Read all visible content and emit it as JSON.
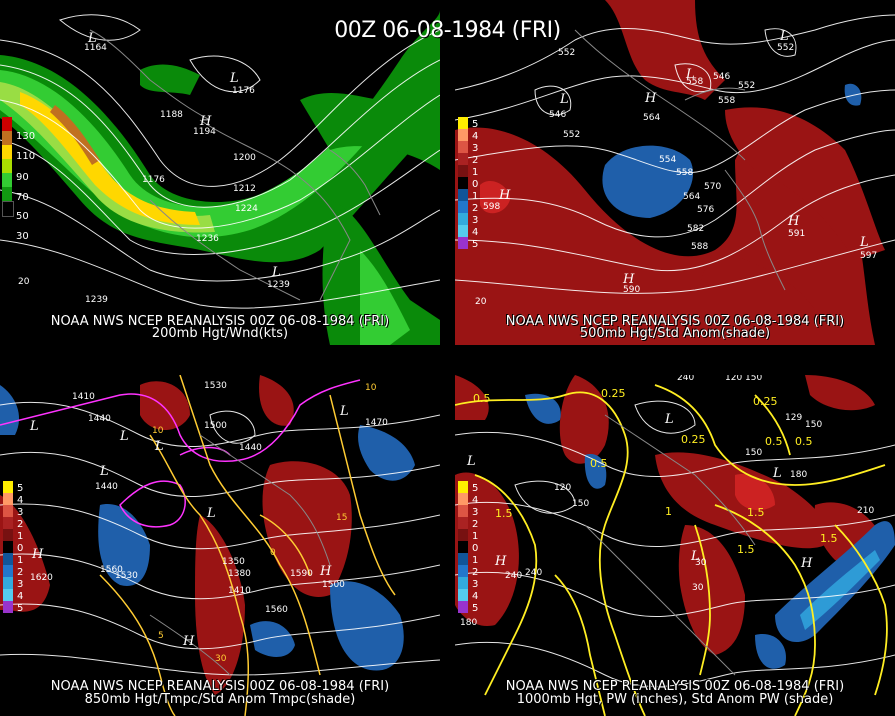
{
  "title": "00Z 06-08-1984 (FRI)",
  "panels": [
    {
      "id": "p1",
      "caption1": "NOAA NWS NCEP REANALYSIS 00Z 06-08-1984 (FRI)",
      "caption2": "200mb Hgt/Wnd(kts)",
      "legend": [
        "130",
        "110",
        "90",
        "70",
        "50",
        "30"
      ],
      "legend_colors": [
        "#cc0000",
        "#c07020",
        "#ffd700",
        "#aadd00",
        "#33cc33",
        "#119911"
      ],
      "contours": [
        "1164",
        "1176",
        "1188",
        "1194",
        "1176",
        "1200",
        "1212",
        "1224",
        "1236",
        "1239",
        "1239",
        "20"
      ],
      "hl": [
        "L",
        "L",
        "H",
        "L"
      ]
    },
    {
      "id": "p2",
      "caption1": "NOAA NWS NCEP REANALYSIS 00Z 06-08-1984 (FRI)",
      "caption2": "500mb Hgt/Std Anom(shade)",
      "legend": [
        "5",
        "4",
        "3",
        "2",
        "1",
        "0",
        "1",
        "2",
        "3",
        "4",
        "5"
      ],
      "legend_colors": [
        "#ffee00",
        "#ff9966",
        "#dd5544",
        "#aa2222",
        "#771111",
        "#000000",
        "#115599",
        "#2277cc",
        "#33aadd",
        "#55ccee",
        "#9933cc"
      ],
      "contours": [
        "552",
        "552",
        "546",
        "552",
        "564",
        "558",
        "546",
        "558",
        "554",
        "570",
        "576",
        "564",
        "582",
        "588",
        "591",
        "597",
        "598",
        "590",
        "20"
      ],
      "hl": [
        "L",
        "H",
        "L",
        "L",
        "H",
        "H",
        "L",
        "H"
      ]
    },
    {
      "id": "p3",
      "caption1": "NOAA NWS NCEP REANALYSIS 00Z 06-08-1984 (FRI)",
      "caption2": "850mb Hgt/Tmpc/Std Anom Tmpc(shade)",
      "legend": [
        "5",
        "4",
        "3",
        "2",
        "1",
        "0",
        "1",
        "2",
        "3",
        "4",
        "5"
      ],
      "contours": [
        "1410",
        "1440",
        "1530",
        "1500",
        "1440",
        "1470",
        "1440",
        "1380",
        "1350",
        "1410",
        "1560",
        "1590",
        "1500",
        "1530",
        "1560",
        "1620",
        "10",
        "15",
        "10",
        "30",
        "5",
        "0"
      ],
      "hl": [
        "L",
        "L",
        "L",
        "L",
        "L",
        "H",
        "H",
        "H",
        "L"
      ]
    },
    {
      "id": "p4",
      "caption1": "NOAA NWS NCEP REANALYSIS 00Z 06-08-1984 (FRI)",
      "caption2": "1000mb Hgt, PW (inches), Std Anom PW (shade)",
      "legend": [
        "5",
        "4",
        "3",
        "2",
        "1",
        "0",
        "1",
        "2",
        "3",
        "4",
        "5"
      ],
      "contours": [
        "240",
        "120",
        "150",
        "0.25",
        "0.5",
        "0.25",
        "0.5",
        "0.5",
        "0.5",
        "1.5",
        "1.5",
        "1.5",
        "1.5",
        "1",
        "120",
        "150",
        "180",
        "210",
        "240",
        "180",
        "30"
      ],
      "hl": [
        "L",
        "L",
        "L",
        "H",
        "L",
        "H"
      ]
    }
  ],
  "colors": {
    "wind_dark": "#0a8a0a",
    "wind_green": "#33cc33",
    "wind_light": "#99dd44",
    "wind_yellow": "#ffd700",
    "wind_orange": "#c07020",
    "anom_pos": "#9a1414",
    "anom_pos2": "#cc2222",
    "anom_neg": "#1f5faa",
    "anom_neg2": "#2e9bd6",
    "temp_contour": "#ffcc33",
    "cold_contour": "#ff33ff",
    "pw_contour": "#ffee22"
  }
}
